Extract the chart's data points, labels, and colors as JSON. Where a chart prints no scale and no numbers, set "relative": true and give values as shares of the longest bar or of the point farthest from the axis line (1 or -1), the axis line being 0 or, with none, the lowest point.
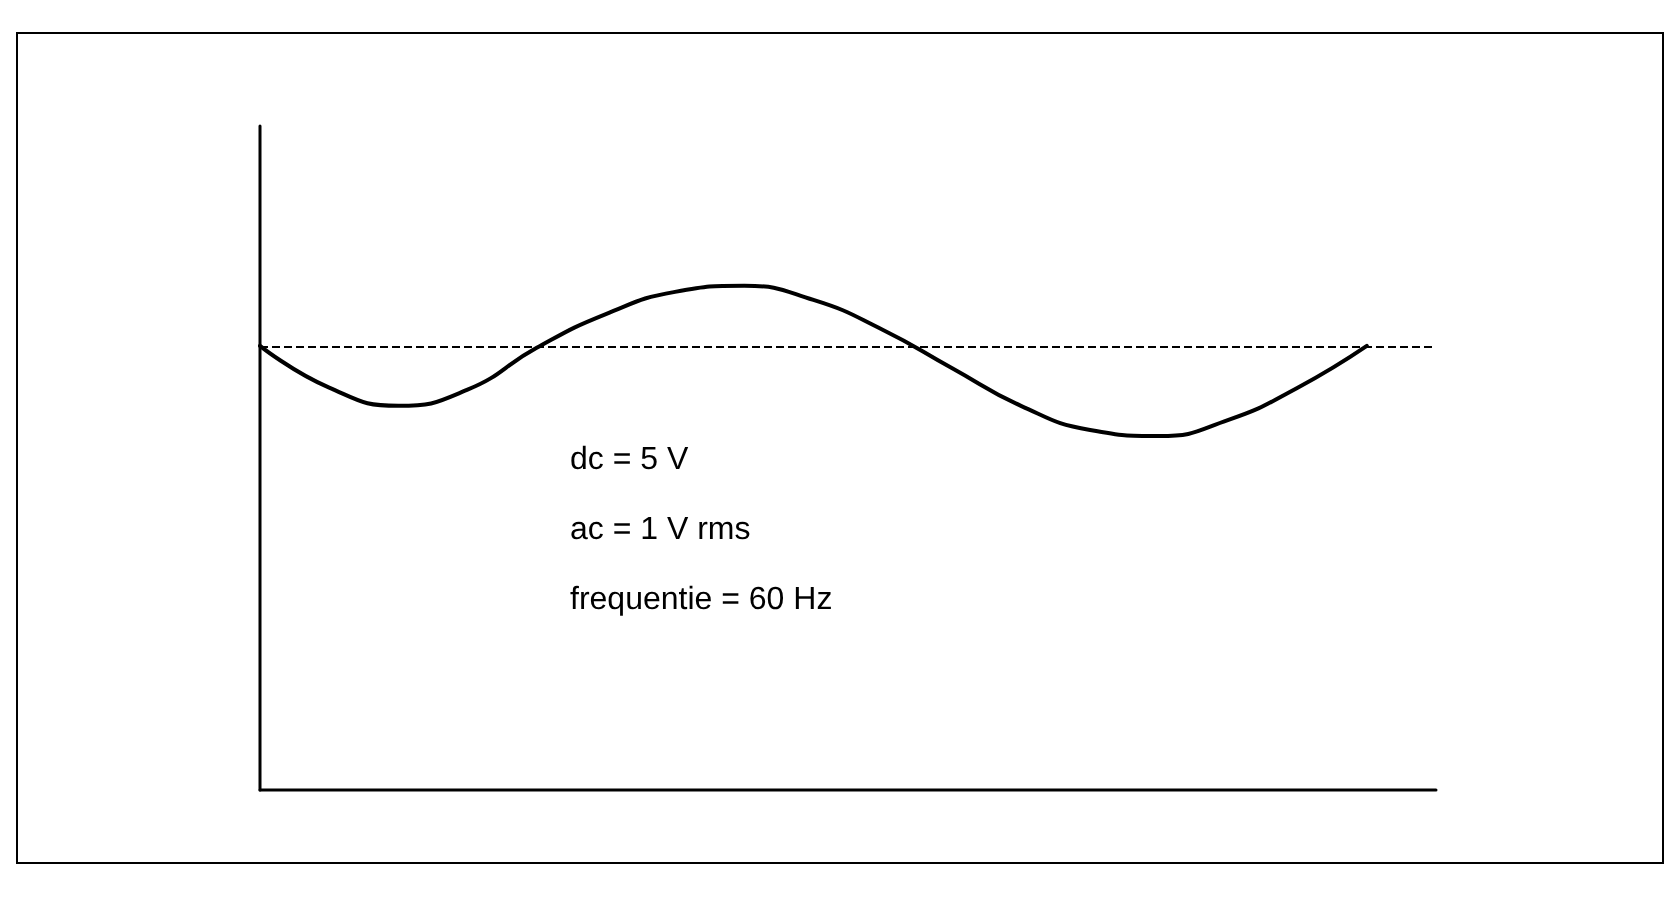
{
  "chart_data": {
    "type": "line",
    "relative": true,
    "categories": [
      null,
      null,
      null,
      null,
      null,
      null,
      null,
      null,
      null,
      null,
      null,
      null,
      null,
      null,
      null,
      null,
      null,
      null
    ],
    "series": [
      {
        "color": "#000000",
        "values": [
          0.881,
          0.798,
          0.762,
          0.794,
          0.877,
          0.944,
          0.988,
          1,
          0.972,
          0.913,
          0.837,
          0.762,
          0.714,
          0.702,
          0.734,
          0.798,
          0.881,
          null
        ]
      }
    ],
    "ref_lines": [
      {
        "axis": "y",
        "value": 0.881,
        "color": "#000000",
        "line_style": "dashed"
      }
    ],
    "annotations": [
      "dc = 5 V",
      "ac = 1 V rms",
      "frequentie = 60 Hz"
    ],
    "marker": "none",
    "line_style": "solid",
    "grid": false
  }
}
